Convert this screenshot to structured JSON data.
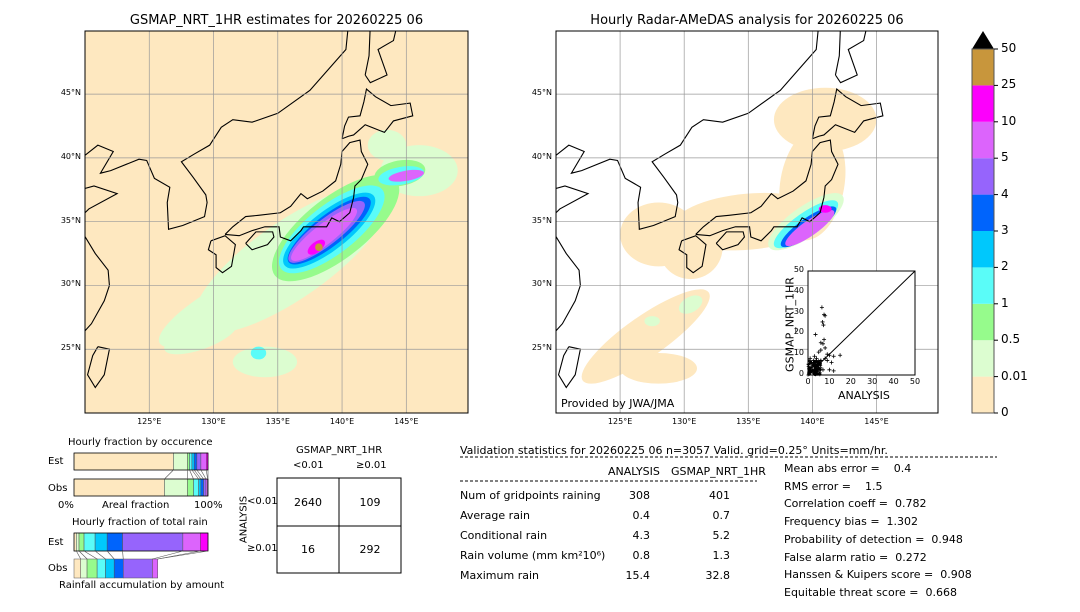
{
  "left_map": {
    "title": "GSMAP_NRT_1HR estimates for 20260225 06",
    "lon_ticks": [
      "125°E",
      "130°E",
      "135°E",
      "140°E",
      "145°E"
    ],
    "lat_ticks": [
      "45°N",
      "40°N",
      "35°N",
      "30°N",
      "25°N"
    ]
  },
  "right_map": {
    "title": "Hourly Radar-AMeDAS analysis for 20260225 06",
    "lon_ticks": [
      "125°E",
      "130°E",
      "135°E",
      "140°E",
      "145°E"
    ],
    "lat_ticks": [
      "45°N",
      "40°N",
      "35°N",
      "30°N",
      "25°N"
    ],
    "credit": "Provided by JWA/JMA"
  },
  "colorbar": {
    "levels": [
      "0",
      "0.01",
      "0.5",
      "1",
      "2",
      "3",
      "4",
      "5",
      "10",
      "25",
      "50"
    ],
    "colors": [
      "#fee8c0",
      "#dcfdd0",
      "#96fb8c",
      "#5afcf8",
      "#00c8fc",
      "#0064fc",
      "#9664fc",
      "#dc64fc",
      "#fc00fc",
      "#c8963c"
    ],
    "extend_color": "#000000"
  },
  "scatter": {
    "xlabel": "ANALYSIS",
    "ylabel": "GSMAP_NRT_1HR",
    "ticks": [
      "0",
      "10",
      "20",
      "30",
      "40",
      "50"
    ],
    "range": [
      0,
      50
    ]
  },
  "occurrence": {
    "title": "Hourly fraction by occurence",
    "est_label": "Est",
    "obs_label": "Obs",
    "axis_left": "0%",
    "axis_mid": "Areal fraction",
    "axis_right": "100%",
    "est": [
      74.2,
      10.5,
      1.5,
      1.8,
      1.7,
      2,
      3,
      4,
      1.3
    ],
    "obs": [
      67.5,
      17.2,
      4.5,
      3.8,
      1.7,
      2,
      1.8,
      1.2,
      0.3
    ]
  },
  "total_rain": {
    "title": "Hourly fraction of total rain",
    "est_label": "Est",
    "obs_label": "Obs",
    "footer": "Rainfall accumulation by amount",
    "est": [
      1.75,
      2,
      3.75,
      8.25,
      9,
      11.5,
      45,
      13,
      5.75
    ],
    "obs": [
      5,
      4.75,
      7.5,
      6.25,
      6.5,
      6.75,
      21.75,
      4,
      0
    ]
  },
  "contingency": {
    "col_title": "GSMAP_NRT_1HR",
    "col_labels": [
      "<0.01",
      "≥0.01"
    ],
    "row_title": "ANALYSIS",
    "row_labels": [
      "<0.01",
      "≥0.01"
    ],
    "cells": [
      [
        "2640",
        "109"
      ],
      [
        "16",
        "292"
      ]
    ]
  },
  "stats": {
    "header": "Validation statistics for 20260225 06  n=3057 Valid. grid=0.25° Units=mm/hr.",
    "col_analysis": "ANALYSIS",
    "col_gsmap": "GSMAP_NRT_1HR",
    "rows": [
      {
        "label": "Num of gridpoints raining",
        "analysis": "308",
        "gsmap": "401"
      },
      {
        "label": "Average rain",
        "analysis": "0.4",
        "gsmap": "0.7"
      },
      {
        "label": "Conditional rain",
        "analysis": "4.3",
        "gsmap": "5.2"
      },
      {
        "label": "Rain volume (mm km²10⁶)",
        "analysis": "0.8",
        "gsmap": "1.3"
      },
      {
        "label": "Maximum rain",
        "analysis": "15.4",
        "gsmap": "32.8"
      }
    ],
    "scores": [
      "Mean abs error =    0.4",
      "RMS error =    1.5",
      "Correlation coeff =  0.782",
      "Frequency bias =  1.302",
      "Probability of detection =  0.948",
      "False alarm ratio =  0.272",
      "Hanssen & Kuipers score =  0.908",
      "Equitable threat score =  0.668"
    ]
  },
  "chart_data": [
    {
      "type": "scatter",
      "xlabel": "ANALYSIS",
      "ylabel": "GSMAP_NRT_1HR",
      "xlim": [
        0,
        50
      ],
      "ylim": [
        0,
        50
      ],
      "points": [
        [
          6.5,
          32.5
        ],
        [
          7.5,
          29
        ],
        [
          8,
          28.5
        ],
        [
          6.8,
          25.5
        ],
        [
          7.2,
          24
        ],
        [
          3.5,
          19.5
        ],
        [
          7.5,
          17
        ],
        [
          6,
          15.5
        ],
        [
          7,
          15
        ],
        [
          8,
          13
        ],
        [
          6,
          12
        ],
        [
          5,
          11
        ],
        [
          9,
          10
        ],
        [
          10,
          9.5
        ],
        [
          12,
          9
        ],
        [
          15,
          9.5
        ],
        [
          8,
          8
        ],
        [
          6,
          7
        ],
        [
          4,
          6
        ],
        [
          3,
          5
        ],
        [
          2,
          4
        ],
        [
          1,
          3
        ],
        [
          5,
          3
        ],
        [
          7,
          2.5
        ],
        [
          10,
          2.5
        ],
        [
          12,
          2
        ],
        [
          1,
          1
        ],
        [
          2,
          2
        ],
        [
          3,
          1
        ],
        [
          0.5,
          0.5
        ],
        [
          1.5,
          6
        ],
        [
          2.5,
          7
        ],
        [
          4,
          8
        ],
        [
          9,
          7
        ],
        [
          11,
          6
        ],
        [
          3,
          9
        ],
        [
          1,
          8
        ]
      ],
      "diagonal": true
    },
    {
      "type": "bar",
      "title": "Hourly fraction by occurence",
      "categories": [
        "Est",
        "Obs"
      ],
      "stacked": true
    },
    {
      "type": "bar",
      "title": "Hourly fraction of total rain",
      "categories": [
        "Est",
        "Obs"
      ],
      "stacked": true
    }
  ]
}
